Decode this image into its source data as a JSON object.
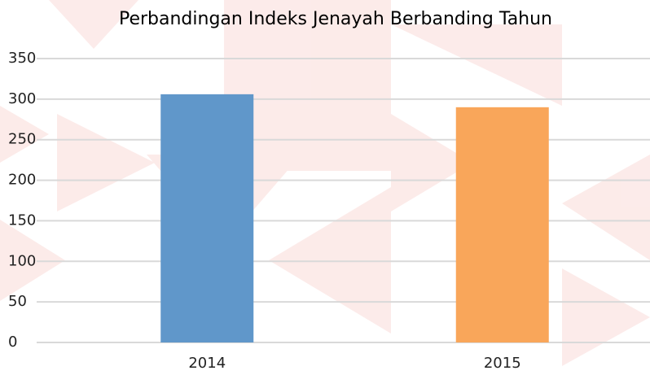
{
  "chart_data": {
    "type": "bar",
    "title": "Perbandingan Indeks Jenayah Berbanding Tahun",
    "categories": [
      "2014",
      "2015"
    ],
    "values": [
      306,
      290
    ],
    "colors": [
      "#6097ca",
      "#f9a65a"
    ],
    "ylim": [
      0,
      350
    ],
    "yticks": [
      0,
      50,
      100,
      150,
      200,
      250,
      300,
      350
    ],
    "grid": true
  }
}
